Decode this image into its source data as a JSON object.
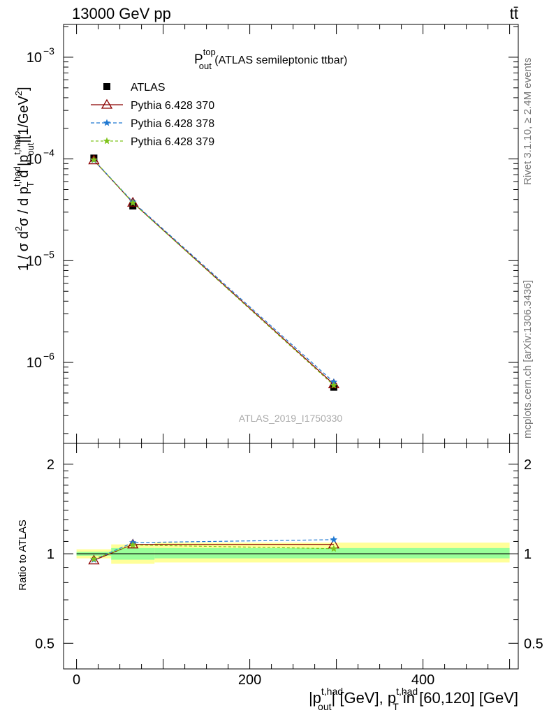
{
  "header": {
    "left": "13000 GeV pp",
    "right": "tt̄"
  },
  "side_labels": {
    "rivet": "Rivet 3.1.10, ≥ 2.4M events",
    "mcplots": "mcplots.cern.ch [arXiv:1306.3436]"
  },
  "analysis_label": "ATLAS_2019_I1750330",
  "colors": {
    "atlas": "#000000",
    "p370": "#8b0000",
    "p378": "#1f78d1",
    "p379": "#7fc31c",
    "band_inner": "#99ff99",
    "band_outer": "#ffff99"
  },
  "chart_data": [
    {
      "type": "line",
      "title_main": "P",
      "title_sup": "top",
      "title_sub": "out",
      "title_rest": " (ATLAS semileptonic ttbar)",
      "ylabel": "1 / σ d²σ / d p_T^{t,had} d |p_out^{t,had}| [1/GeV²]",
      "ylabel_parts": {
        "a": "1 / σ d",
        "b": "2",
        "c": "σ / d p",
        "d": "t,had",
        "e": "T",
        "f": " d |p",
        "g": "t,had",
        "h": "out",
        "i": "|[1/GeV",
        "j": "2",
        "k": "]"
      },
      "yscale": "log",
      "ylim": [
        1.6e-07,
        0.0021
      ],
      "xlim": [
        -15,
        510
      ],
      "yticks": [
        {
          "value": 0.001,
          "base": "10",
          "exp": "−3"
        },
        {
          "value": 0.0001,
          "base": "10",
          "exp": "−4"
        },
        {
          "value": 1e-05,
          "base": "10",
          "exp": "−5"
        },
        {
          "value": 1e-06,
          "base": "10",
          "exp": "−6"
        }
      ],
      "legend_position": "top-left",
      "series": [
        {
          "name": "ATLAS",
          "key": "atlas",
          "x": [
            20,
            65,
            297
          ],
          "y": [
            0.000102,
            3.45e-05,
            5.7e-07
          ],
          "xerr": [
            20,
            25,
            203
          ]
        },
        {
          "name": "Pythia 6.428 370",
          "key": "p370",
          "x": [
            20,
            65,
            297
          ],
          "y": [
            9.7e-05,
            3.72e-05,
            6.1e-07
          ]
        },
        {
          "name": "Pythia 6.428 378",
          "key": "p378",
          "x": [
            20,
            65,
            297
          ],
          "y": [
            9.75e-05,
            3.78e-05,
            6.4e-07
          ]
        },
        {
          "name": "Pythia 6.428 379",
          "key": "p379",
          "x": [
            20,
            65,
            297
          ],
          "y": [
            9.8e-05,
            3.7e-05,
            5.95e-07
          ]
        }
      ]
    },
    {
      "type": "line",
      "ylabel": "Ratio to ATLAS",
      "xlabel": "|p_out^{t,had}| [GeV], p_T^{t,had} in [60,120] [GeV]",
      "xlabel_parts": {
        "a": "|p",
        "b": "t,had",
        "c": "out",
        "d": "| [GeV], p",
        "e": "t,had",
        "f": "T",
        "g": " in [60,120] [GeV]"
      },
      "yscale": "log",
      "ylim": [
        0.41,
        2.35
      ],
      "xlim": [
        -15,
        510
      ],
      "yticks": [
        {
          "value": 2,
          "label": "2"
        },
        {
          "value": 1,
          "label": "1"
        },
        {
          "value": 0.5,
          "label": "0.5"
        }
      ],
      "xticks": [
        {
          "value": 0,
          "label": "0"
        },
        {
          "value": 200,
          "label": "200"
        },
        {
          "value": 400,
          "label": "400"
        }
      ],
      "bands": [
        {
          "xmin": 0,
          "xmax": 40,
          "inner": [
            0.985,
            1.015
          ],
          "outer": [
            0.965,
            1.035
          ]
        },
        {
          "xmin": 40,
          "xmax": 90,
          "inner": [
            0.955,
            1.045
          ],
          "outer": [
            0.925,
            1.075
          ]
        },
        {
          "xmin": 90,
          "xmax": 500,
          "inner": [
            0.965,
            1.045
          ],
          "outer": [
            0.935,
            1.09
          ]
        }
      ],
      "series": [
        {
          "name": "Pythia 6.428 370",
          "key": "p370",
          "x": [
            20,
            65,
            297
          ],
          "y": [
            0.95,
            1.075,
            1.075
          ]
        },
        {
          "name": "Pythia 6.428 378",
          "key": "p378",
          "x": [
            20,
            65,
            297
          ],
          "y": [
            0.955,
            1.09,
            1.115
          ]
        },
        {
          "name": "Pythia 6.428 379",
          "key": "p379",
          "x": [
            20,
            65,
            297
          ],
          "y": [
            0.96,
            1.07,
            1.04
          ]
        }
      ]
    }
  ]
}
